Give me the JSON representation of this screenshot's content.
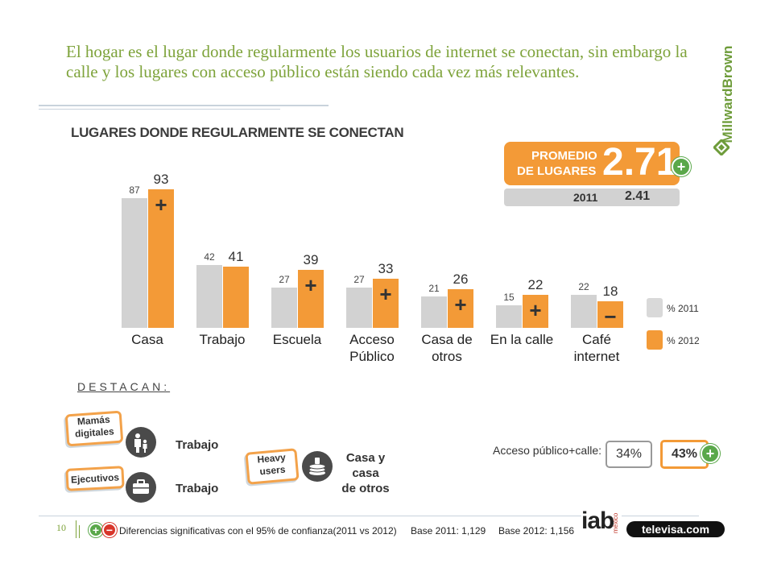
{
  "headline": "El hogar es el lugar donde  regularmente los usuarios de internet se conectan, sin embargo la calle y los lugares con acceso público están siendo cada vez más relevantes.",
  "brand": "MillwardBrown",
  "colors": {
    "bar_2011": "#d2d2d2",
    "bar_2012": "#f39a37",
    "headline": "#7ea33b",
    "positive": "#5aa84a"
  },
  "chart_data": {
    "type": "bar",
    "title": "LUGARES DONDE REGULARMENTE SE CONECTAN",
    "categories": [
      "Casa",
      "Trabajo",
      "Escuela",
      "Acceso Público",
      "Casa de otros",
      "En la calle",
      "Café internet"
    ],
    "series": [
      {
        "name": "% 2011",
        "values": [
          87,
          42,
          27,
          27,
          21,
          15,
          22
        ]
      },
      {
        "name": "% 2012",
        "values": [
          93,
          41,
          39,
          33,
          26,
          22,
          18
        ]
      }
    ],
    "significance": [
      "+",
      "",
      "+",
      "+",
      "+",
      "+",
      "−"
    ],
    "ylim": [
      0,
      100
    ],
    "legend": "right",
    "grid": false
  },
  "category_lines": [
    [
      "Casa"
    ],
    [
      "Trabajo"
    ],
    [
      "Escuela"
    ],
    [
      "Acceso",
      "Público"
    ],
    [
      "Casa de",
      "otros"
    ],
    [
      "En la calle"
    ],
    [
      "Café",
      "internet"
    ]
  ],
  "promedio": {
    "label_line1": "PROMEDIO",
    "label_line2": "DE LUGARES",
    "value": "2.71",
    "prev_year": "2011",
    "prev_value": "2.41",
    "sign": "+"
  },
  "destacan": {
    "title": "DESTACAN:",
    "items": [
      {
        "tag_line1": "Mamás",
        "tag_line2": "digitales",
        "icon": "family-icon",
        "label": "Trabajo"
      },
      {
        "tag_line1": "Ejecutivos",
        "tag_line2": "",
        "icon": "briefcase-icon",
        "label": "Trabajo"
      },
      {
        "tag_line1": "Heavy",
        "tag_line2": "users",
        "icon": "coin-stack-icon",
        "label_line1": "Casa y casa",
        "label_line2": "de otros"
      }
    ]
  },
  "acceso_publico": {
    "label": "Acceso público+calle:",
    "value_2011": "34%",
    "value_2012": "43%",
    "sign": "+"
  },
  "footer": {
    "page": "10",
    "signs": "+−",
    "note": "Diferencias significativas con  el 95% de confianza(2011 vs 2012)",
    "base_2011": "Base 2011: 1,129",
    "base_2012": "Base 2012: 1,156",
    "logo1": "iab",
    "logo1_sub": "méxico",
    "logo2": "televisa.com"
  }
}
